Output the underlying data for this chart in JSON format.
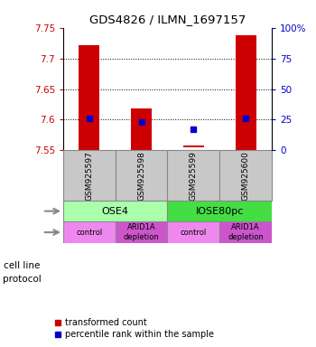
{
  "title": "GDS4826 / ILMN_1697157",
  "samples": [
    "GSM925597",
    "GSM925598",
    "GSM925599",
    "GSM925600"
  ],
  "bar_bottoms": [
    7.55,
    7.55,
    7.555,
    7.55
  ],
  "bar_tops": [
    7.722,
    7.618,
    7.558,
    7.738
  ],
  "blue_y": [
    7.602,
    7.596,
    7.585,
    7.602
  ],
  "ylim": [
    7.55,
    7.75
  ],
  "yticks_left": [
    7.55,
    7.6,
    7.65,
    7.7,
    7.75
  ],
  "ytick_labels_left": [
    "7.55",
    "7.6",
    "7.65",
    "7.7",
    "7.75"
  ],
  "yticks_right_pct": [
    0,
    25,
    50,
    75,
    100
  ],
  "ytick_labels_right": [
    "0",
    "25",
    "50",
    "75",
    "100%"
  ],
  "left_color": "#cc0000",
  "right_color": "#0000cc",
  "bar_color": "#cc0000",
  "blue_color": "#0000cc",
  "grid_lines": [
    7.6,
    7.65,
    7.7
  ],
  "cell_line_groups": [
    {
      "label": "OSE4",
      "cols": [
        0,
        1
      ],
      "color": "#aaffaa"
    },
    {
      "label": "IOSE80pc",
      "cols": [
        2,
        3
      ],
      "color": "#44dd44"
    }
  ],
  "protocol_groups": [
    {
      "label": "control",
      "col": 0,
      "color": "#ee88ee"
    },
    {
      "label": "ARID1A\ndepletion",
      "col": 1,
      "color": "#cc55cc"
    },
    {
      "label": "control",
      "col": 2,
      "color": "#ee88ee"
    },
    {
      "label": "ARID1A\ndepletion",
      "col": 3,
      "color": "#cc55cc"
    }
  ],
  "sample_box_color": "#c8c8c8",
  "legend_items": [
    {
      "color": "#cc0000",
      "label": "transformed count"
    },
    {
      "color": "#0000cc",
      "label": "percentile rank within the sample"
    }
  ],
  "cell_line_label": "cell line",
  "protocol_label": "protocol",
  "n_samples": 4,
  "bar_width": 0.4
}
